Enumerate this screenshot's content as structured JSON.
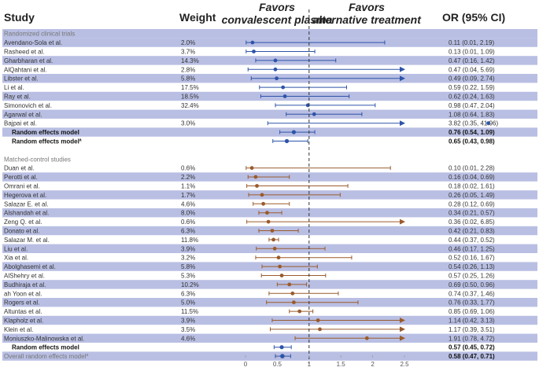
{
  "headers": {
    "study": "Study",
    "weight": "Weight",
    "or_ci": "OR (95% CI)",
    "favors_left_line1": "Favors",
    "favors_left_line2": "convalescent plasma",
    "favors_right_line1": "Favors",
    "favors_right_line2": "alternative treatment"
  },
  "colors": {
    "band": "#b9bfe3",
    "rct": "#2e54a8",
    "matched": "#9a5b2c",
    "summary": "#2e54a8",
    "dashed_line": "#333333"
  },
  "chart_data": {
    "type": "forest",
    "x_ticks": [
      "0",
      "0.5",
      "1",
      "1.5",
      "2",
      "2.5"
    ],
    "xlim": [
      0,
      2.5
    ],
    "reference_line": 1,
    "sections": [
      {
        "name": "Randomized clinical trials",
        "color_key": "rct",
        "rows": [
          {
            "study": "Avendano-Sola et al.",
            "weight": "2.0%",
            "or": 0.11,
            "lo": 0.01,
            "hi": 2.19,
            "text": "0.11 (0.01, 2.19)",
            "band": true
          },
          {
            "study": "Rasheed et al.",
            "weight": "3.7%",
            "or": 0.13,
            "lo": 0.01,
            "hi": 1.09,
            "text": "0.13 (0.01, 1.09)",
            "band": false
          },
          {
            "study": "Gharbharan et al.",
            "weight": "14.3%",
            "or": 0.47,
            "lo": 0.16,
            "hi": 1.42,
            "text": "0.47 (0.16, 1.42)",
            "band": true
          },
          {
            "study": "AlQahtani et al.",
            "weight": "2.8%",
            "or": 0.47,
            "lo": 0.04,
            "hi": 5.69,
            "text": "0.47 (0.04, 5.69)",
            "band": false
          },
          {
            "study": "Libster et al.",
            "weight": "5.8%",
            "or": 0.49,
            "lo": 0.09,
            "hi": 2.74,
            "text": "0.49 (0.09, 2.74)",
            "band": true
          },
          {
            "study": "Li et al.",
            "weight": "17.5%",
            "or": 0.59,
            "lo": 0.22,
            "hi": 1.59,
            "text": "0.59 (0.22, 1.59)",
            "band": false
          },
          {
            "study": "Ray et al.",
            "weight": "18.5%",
            "or": 0.62,
            "lo": 0.24,
            "hi": 1.63,
            "text": "0.62 (0.24, 1.63)",
            "band": true
          },
          {
            "study": "Simonovich et al.",
            "weight": "32.4%",
            "or": 0.98,
            "lo": 0.47,
            "hi": 2.04,
            "text": "0.98 (0.47, 2.04)",
            "band": false
          },
          {
            "study": "Agarwal et al.",
            "weight": "",
            "or": 1.08,
            "lo": 0.64,
            "hi": 1.83,
            "text": "1.08 (0.64, 1.83)",
            "band": true
          },
          {
            "study": "Bajpai et al.",
            "weight": "3.0%",
            "or": 3.82,
            "lo": 0.35,
            "hi": 41.96,
            "text": "3.82 (0.35, 41.96)",
            "band": false
          }
        ],
        "summaries": [
          {
            "study": "Random effects model",
            "sup": "",
            "or": 0.76,
            "lo": 0.54,
            "hi": 1.09,
            "text": "0.76 (0.54, 1.09)",
            "band": true
          },
          {
            "study": "Random effects model",
            "sup": "a",
            "or": 0.65,
            "lo": 0.43,
            "hi": 0.98,
            "text": "0.65 (0.43, 0.98)",
            "band": false
          }
        ]
      },
      {
        "name": "Matched-control studies",
        "color_key": "matched",
        "rows": [
          {
            "study": "Duan et al.",
            "weight": "0.6%",
            "or": 0.1,
            "lo": 0.01,
            "hi": 2.28,
            "text": "0.10 (0.01, 2.28)",
            "band": false
          },
          {
            "study": "Perotti et al.",
            "weight": "2.2%",
            "or": 0.16,
            "lo": 0.04,
            "hi": 0.69,
            "text": "0.16 (0.04, 0.69)",
            "band": true
          },
          {
            "study": "Omrani et al.",
            "weight": "1.1%",
            "or": 0.18,
            "lo": 0.02,
            "hi": 1.61,
            "text": "0.18 (0.02, 1.61)",
            "band": false
          },
          {
            "study": "Hegerova et al.",
            "weight": "1.7%",
            "or": 0.26,
            "lo": 0.05,
            "hi": 1.49,
            "text": "0.26 (0.05, 1.49)",
            "band": true
          },
          {
            "study": "Salazar E. et al.",
            "weight": "4.6%",
            "or": 0.28,
            "lo": 0.12,
            "hi": 0.69,
            "text": "0.28 (0.12, 0.69)",
            "band": false
          },
          {
            "study": "Alshandah et al.",
            "weight": "8.0%",
            "or": 0.34,
            "lo": 0.21,
            "hi": 0.57,
            "text": "0.34 (0.21, 0.57)",
            "band": true
          },
          {
            "study": "Zeng Q. et al.",
            "weight": "0.6%",
            "or": 0.36,
            "lo": 0.02,
            "hi": 6.85,
            "text": "0.36 (0.02, 6.85)",
            "band": false
          },
          {
            "study": "Donato et al.",
            "weight": "6.3%",
            "or": 0.42,
            "lo": 0.21,
            "hi": 0.83,
            "text": "0.42 (0.21, 0.83)",
            "band": true
          },
          {
            "study": "Salazar M. et al.",
            "weight": "11.8%",
            "or": 0.44,
            "lo": 0.37,
            "hi": 0.52,
            "text": "0.44 (0.37, 0.52)",
            "band": false
          },
          {
            "study": "Liu et al.",
            "weight": "3.9%",
            "or": 0.46,
            "lo": 0.17,
            "hi": 1.25,
            "text": "0.46 (0.17, 1.25)",
            "band": true
          },
          {
            "study": "Xia et al.",
            "weight": "3.2%",
            "or": 0.52,
            "lo": 0.16,
            "hi": 1.67,
            "text": "0.52 (0.16, 1.67)",
            "band": false
          },
          {
            "study": "Abolghasemi et al.",
            "weight": "5.8%",
            "or": 0.54,
            "lo": 0.26,
            "hi": 1.13,
            "text": "0.54 (0.26, 1.13)",
            "band": true
          },
          {
            "study": "AlShehry et al.",
            "weight": "5.3%",
            "or": 0.57,
            "lo": 0.25,
            "hi": 1.26,
            "text": "0.57 (0.25, 1.26)",
            "band": false
          },
          {
            "study": "Budhiraja et al.",
            "weight": "10.2%",
            "or": 0.69,
            "lo": 0.5,
            "hi": 0.96,
            "text": "0.69 (0.50, 0.96)",
            "band": true
          },
          {
            "study": "ah Yoon et al.",
            "weight": "6.3%",
            "or": 0.74,
            "lo": 0.37,
            "hi": 1.46,
            "text": "0.74 (0.37, 1.46)",
            "band": false
          },
          {
            "study": "Rogers et al.",
            "weight": "5.0%",
            "or": 0.76,
            "lo": 0.33,
            "hi": 1.77,
            "text": "0.76 (0.33, 1.77)",
            "band": true
          },
          {
            "study": "Altuntas et al.",
            "weight": "11.5%",
            "or": 0.85,
            "lo": 0.69,
            "hi": 1.06,
            "text": "0.85 (0.69, 1.06)",
            "band": false
          },
          {
            "study": "Klapholz et al.",
            "weight": "3.9%",
            "or": 1.14,
            "lo": 0.42,
            "hi": 3.13,
            "text": "1.14 (0.42, 3.13)",
            "band": true
          },
          {
            "study": "Klein et al.",
            "weight": "3.5%",
            "or": 1.17,
            "lo": 0.39,
            "hi": 3.51,
            "text": "1.17 (0.39, 3.51)",
            "band": false
          },
          {
            "study": "Moniuszko-Malinowska et al.",
            "weight": "4.6%",
            "or": 1.91,
            "lo": 0.78,
            "hi": 4.72,
            "text": "1.91 (0.78, 4.72)",
            "band": true
          }
        ],
        "summaries": [
          {
            "study": "Random effects model",
            "sup": "",
            "or": 0.57,
            "lo": 0.45,
            "hi": 0.72,
            "text": "0.57 (0.45, 0.72)",
            "band": false
          }
        ]
      }
    ],
    "overall": {
      "study": "Overall random effects model",
      "sup": "a",
      "or": 0.58,
      "lo": 0.47,
      "hi": 0.71,
      "text": "0.58 (0.47, 0.71)",
      "band": true
    }
  }
}
